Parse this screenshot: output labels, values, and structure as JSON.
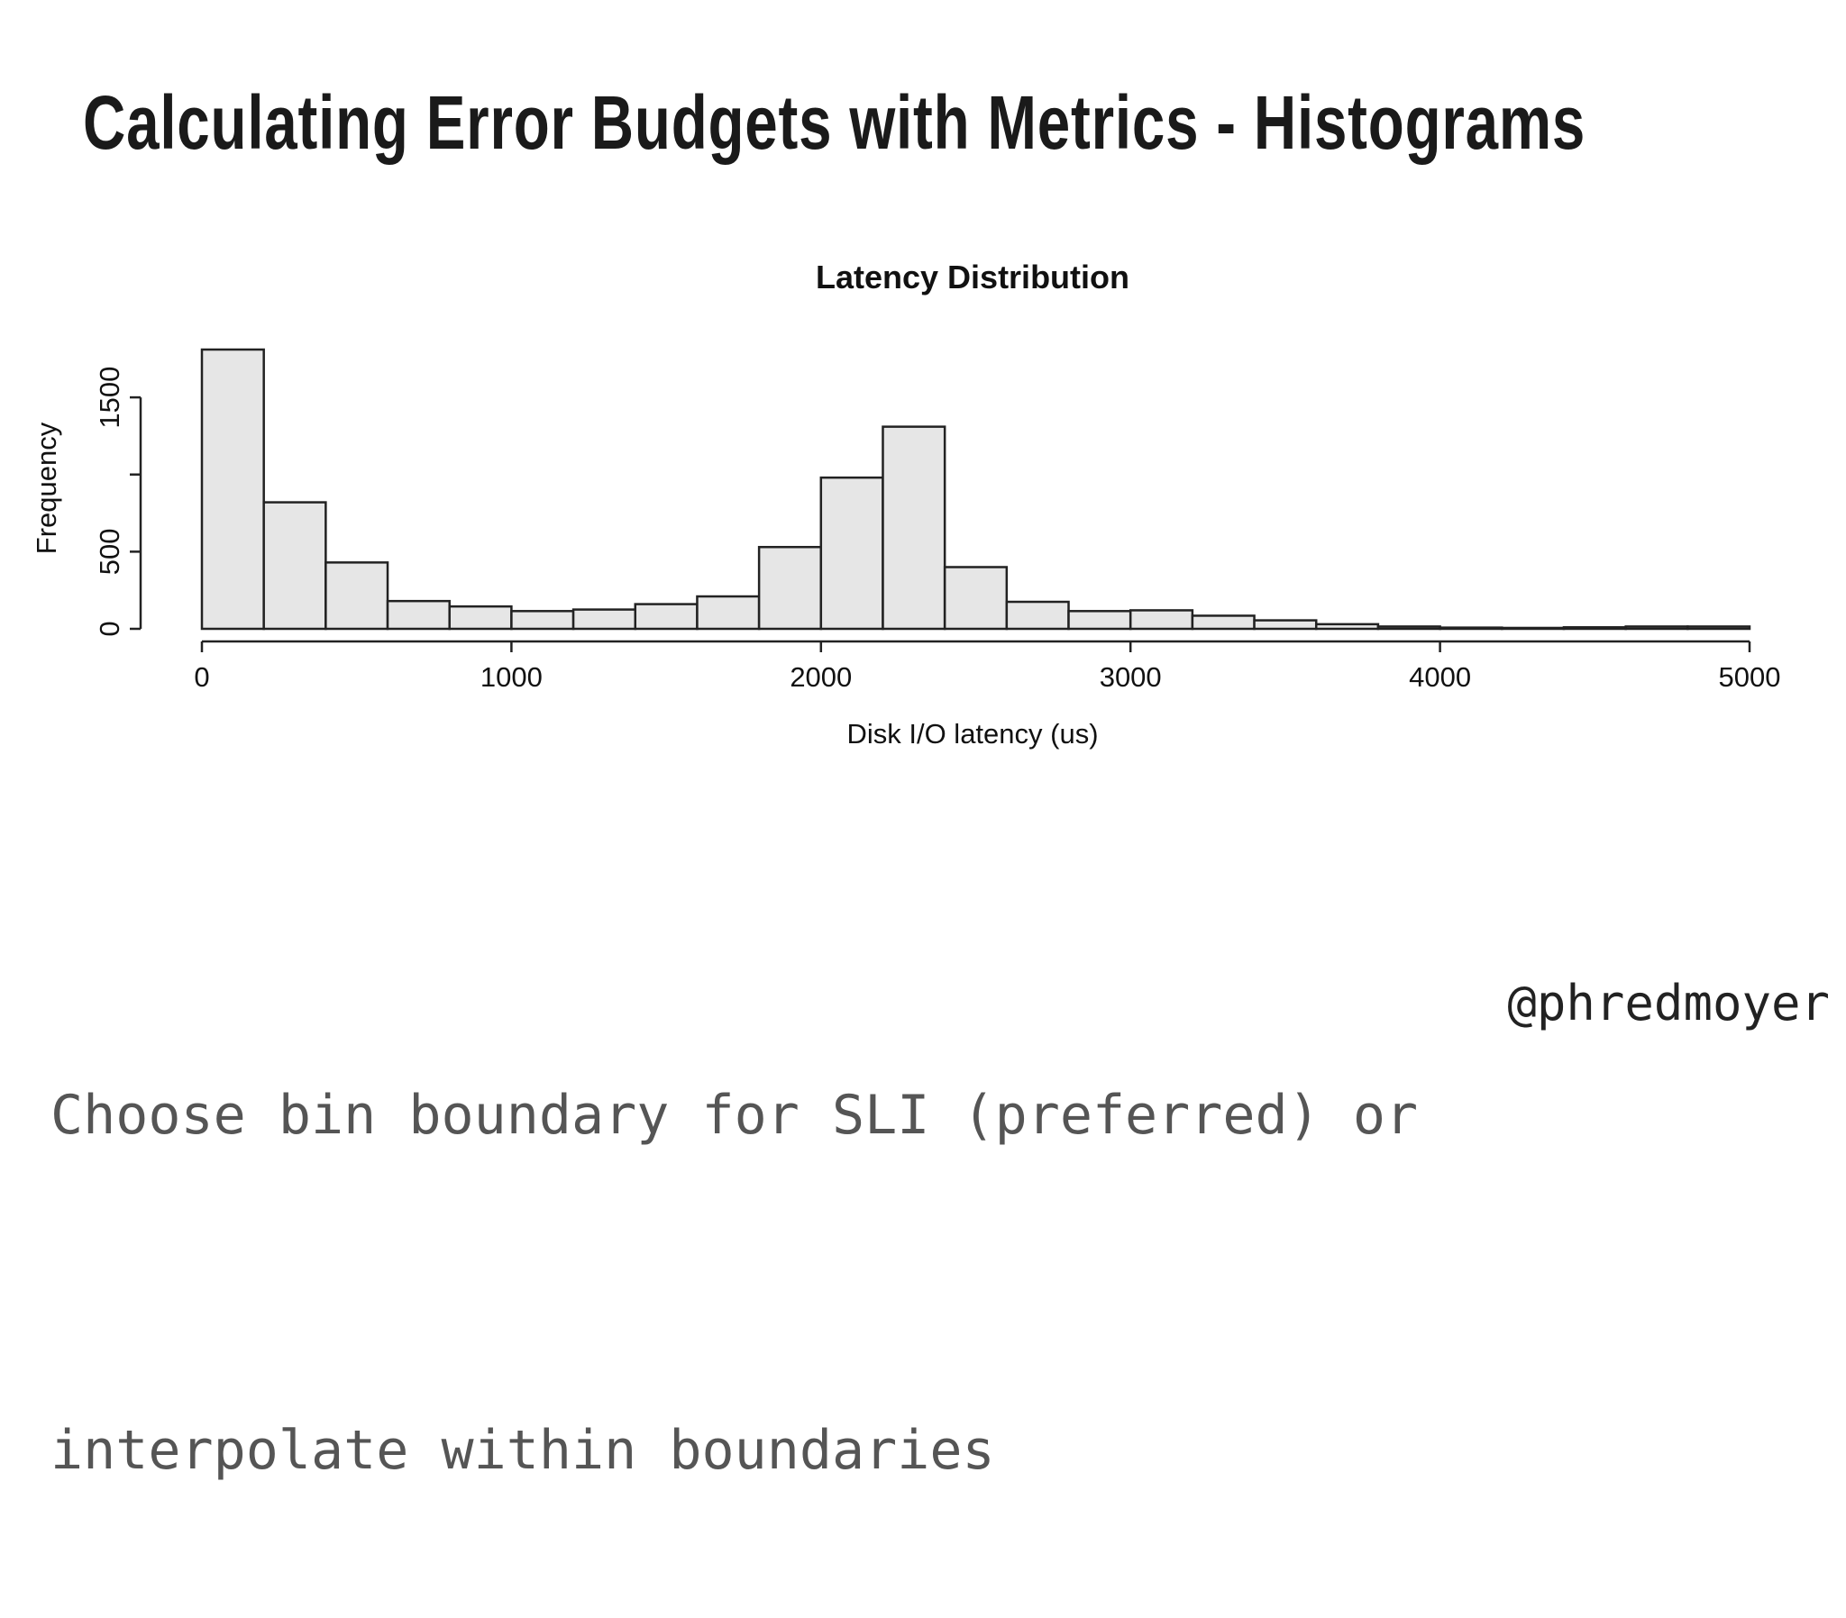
{
  "slide": {
    "title": "Calculating Error Budgets with Metrics - Histograms",
    "caption_line1": "Choose bin boundary for SLI (preferred) or",
    "caption_line2": "interpolate within boundaries",
    "handle": "@phredmoyer"
  },
  "chart_data": {
    "type": "bar",
    "title": "Latency Distribution",
    "xlabel": "Disk I/O latency (us)",
    "ylabel": "Frequency",
    "bin_edges": [
      0,
      200,
      400,
      600,
      800,
      1000,
      1200,
      1400,
      1600,
      1800,
      2000,
      2200,
      2400,
      2600,
      2800,
      3000,
      3200,
      3400,
      3600,
      3800,
      4000,
      4200,
      4400,
      4600,
      4800,
      5000
    ],
    "values": [
      1810,
      820,
      430,
      180,
      145,
      115,
      125,
      160,
      210,
      530,
      980,
      1310,
      400,
      175,
      115,
      120,
      85,
      55,
      30,
      15,
      8,
      6,
      10,
      15,
      15
    ],
    "xlim": [
      0,
      5000
    ],
    "ylim": [
      0,
      1810
    ],
    "x_ticks": [
      0,
      1000,
      2000,
      3000,
      4000,
      5000
    ],
    "y_ticks": [
      0,
      500,
      1000,
      1500
    ],
    "y_tick_labels": [
      "0",
      "500",
      "",
      "1500"
    ],
    "grid": false,
    "colors": {
      "bar_fill": "#e6e6e6",
      "bar_stroke": "#222222"
    }
  }
}
